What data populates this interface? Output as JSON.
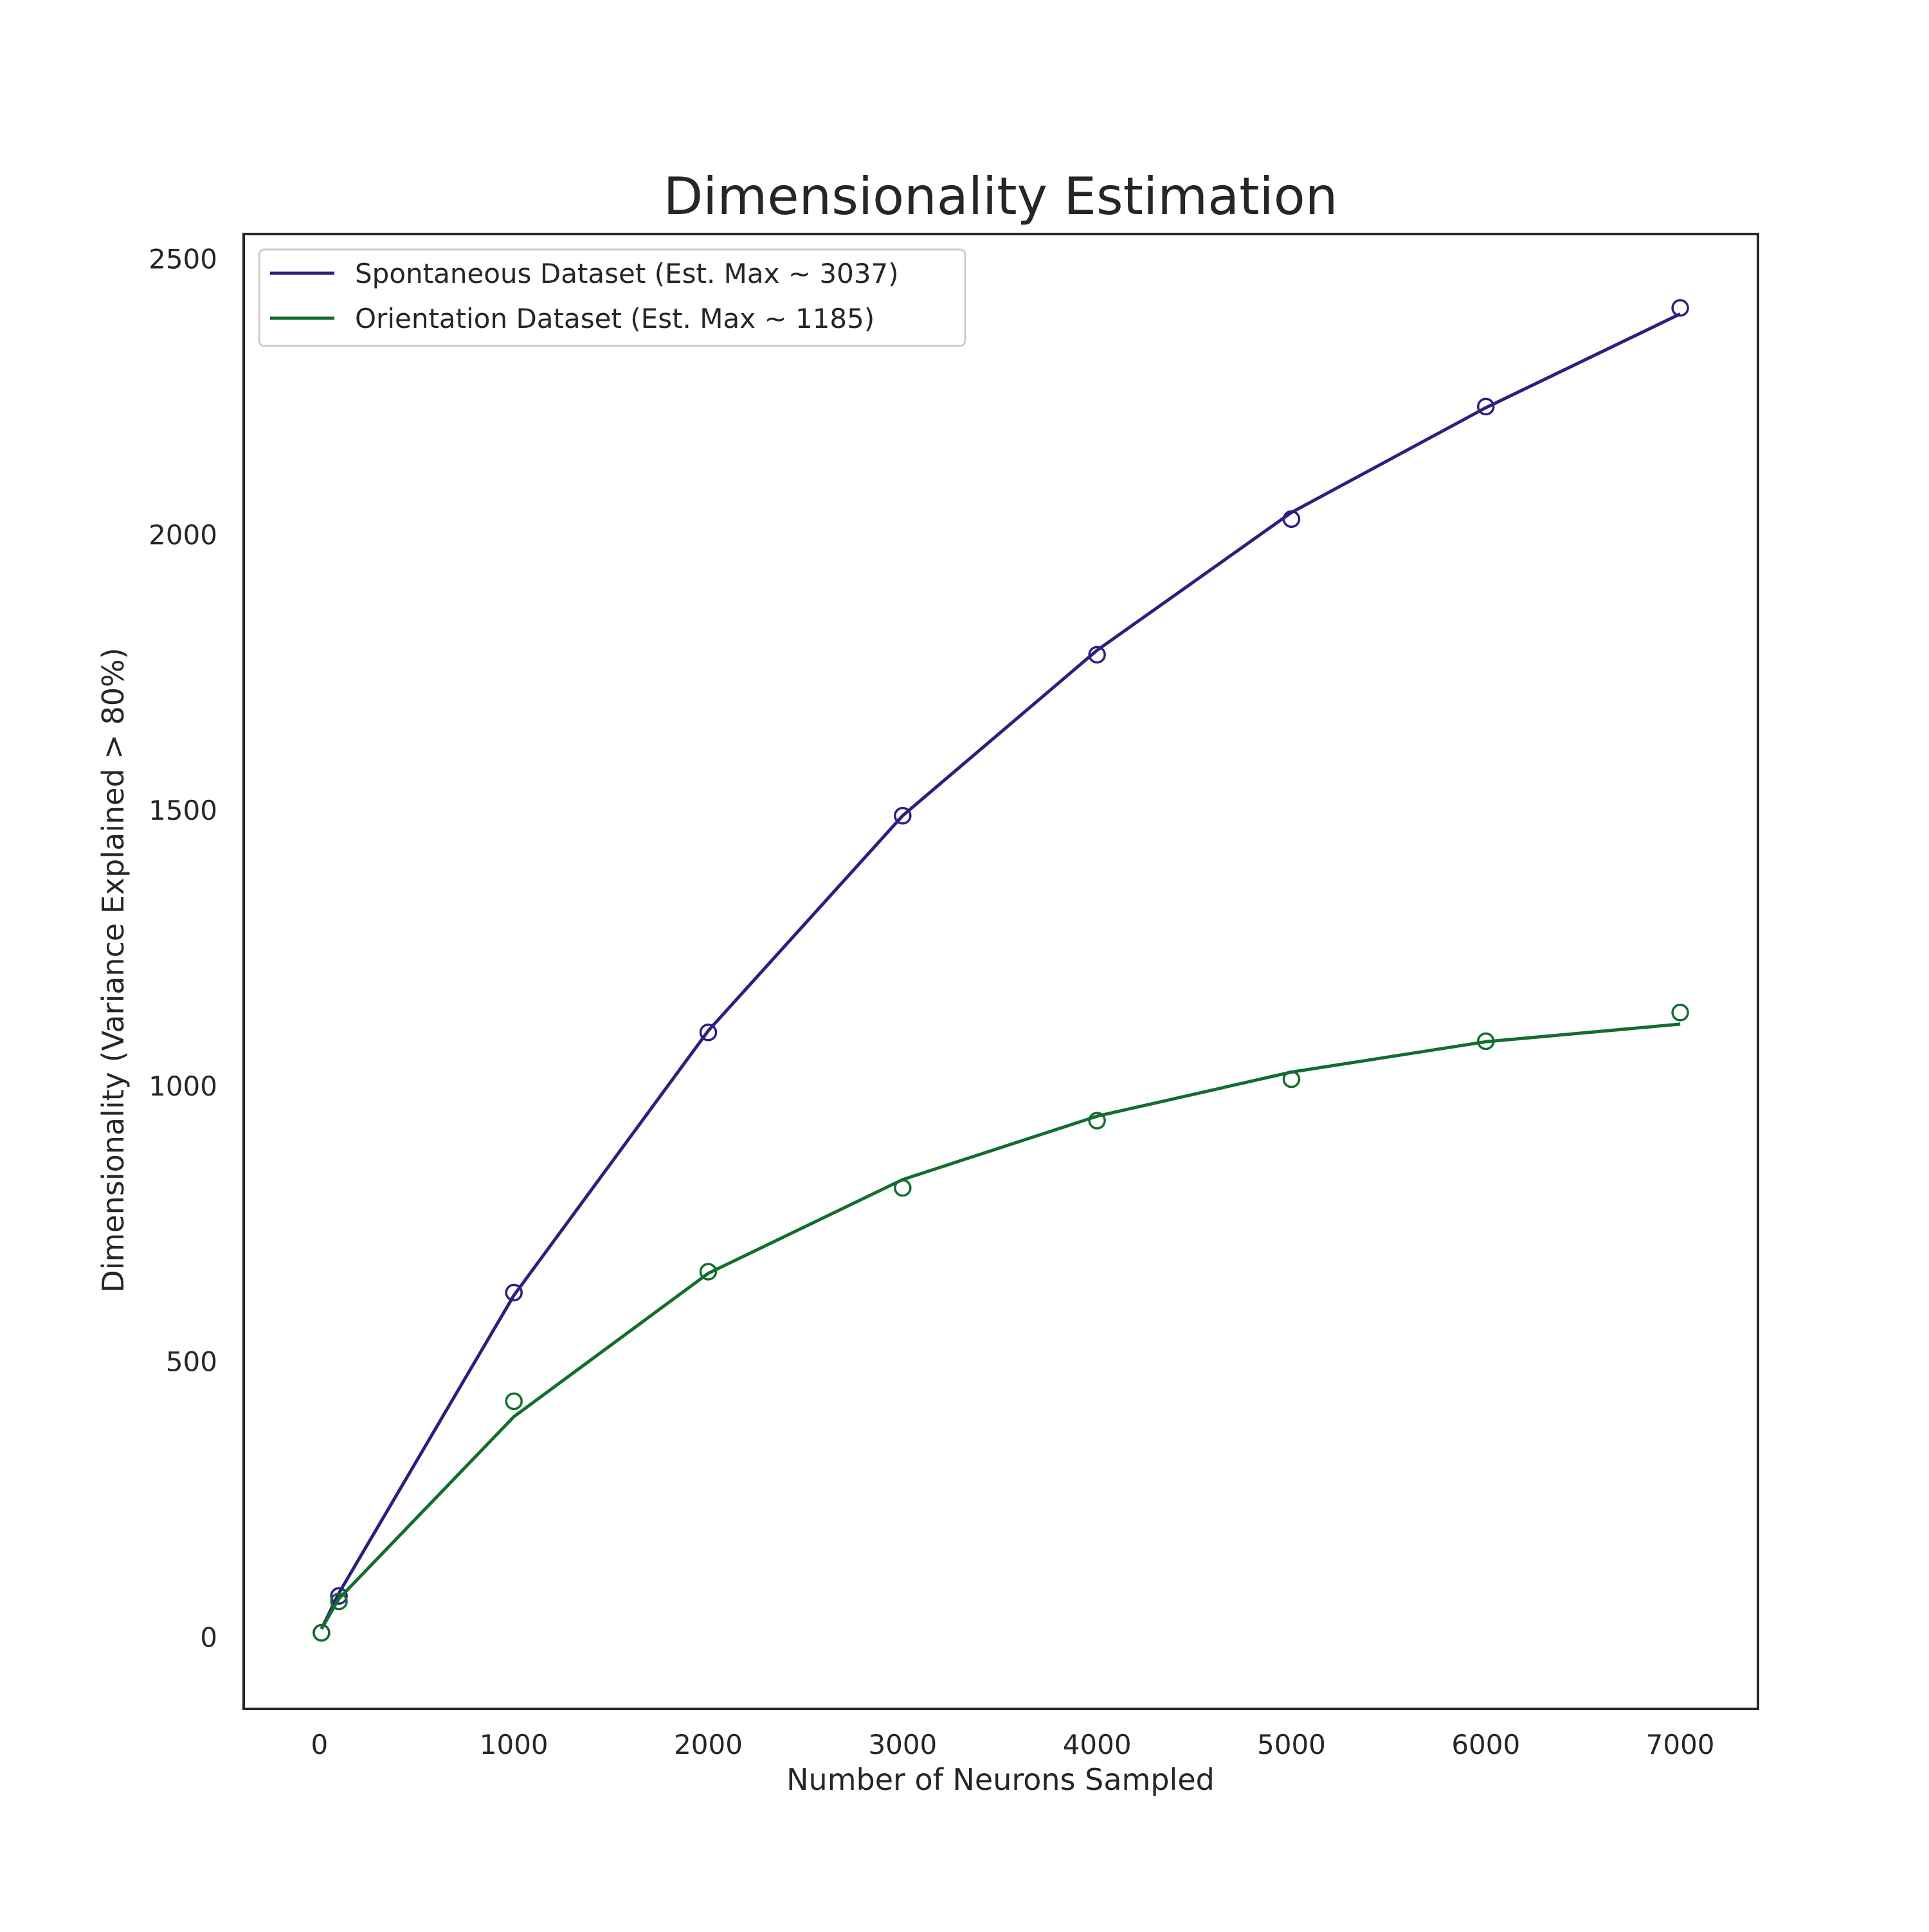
{
  "chart_data": {
    "type": "line",
    "title": "Dimensionality Estimation",
    "xlabel": "Number of Neurons Sampled",
    "ylabel": "Dimensionality (Variance Explained > 80%)",
    "xlim": [
      -390,
      7400
    ],
    "ylim": [
      -130,
      2545
    ],
    "xticks": [
      0,
      1000,
      2000,
      3000,
      4000,
      5000,
      6000,
      7000
    ],
    "yticks": [
      0,
      500,
      1000,
      1500,
      2000,
      2500
    ],
    "grid": false,
    "legend_position": "top-left",
    "series": [
      {
        "name": "Spontaneous Dataset (Est. Max ~ 3037)",
        "color": "#2b1f7f",
        "points_x": [
          10,
          100,
          1000,
          2000,
          3000,
          4000,
          5000,
          6000,
          7000
        ],
        "points_y": [
          8,
          75,
          625,
          1097,
          1490,
          1782,
          2028,
          2232,
          2411
        ],
        "fit_x": [
          10,
          100,
          1000,
          2000,
          3000,
          4000,
          5000,
          6000,
          7000
        ],
        "fit_y": [
          15,
          80,
          620,
          1100,
          1490,
          1790,
          2040,
          2230,
          2400
        ]
      },
      {
        "name": "Orientation Dataset (Est. Max ~ 1185)",
        "color": "#116e2c",
        "points_x": [
          10,
          100,
          1000,
          2000,
          3000,
          4000,
          5000,
          6000,
          7000
        ],
        "points_y": [
          8,
          65,
          428,
          663,
          815,
          937,
          1012,
          1081,
          1133
        ],
        "fit_x": [
          10,
          100,
          1000,
          2000,
          3000,
          4000,
          5000,
          6000,
          7000
        ],
        "fit_y": [
          15,
          70,
          400,
          660,
          830,
          945,
          1025,
          1080,
          1112
        ]
      }
    ]
  }
}
